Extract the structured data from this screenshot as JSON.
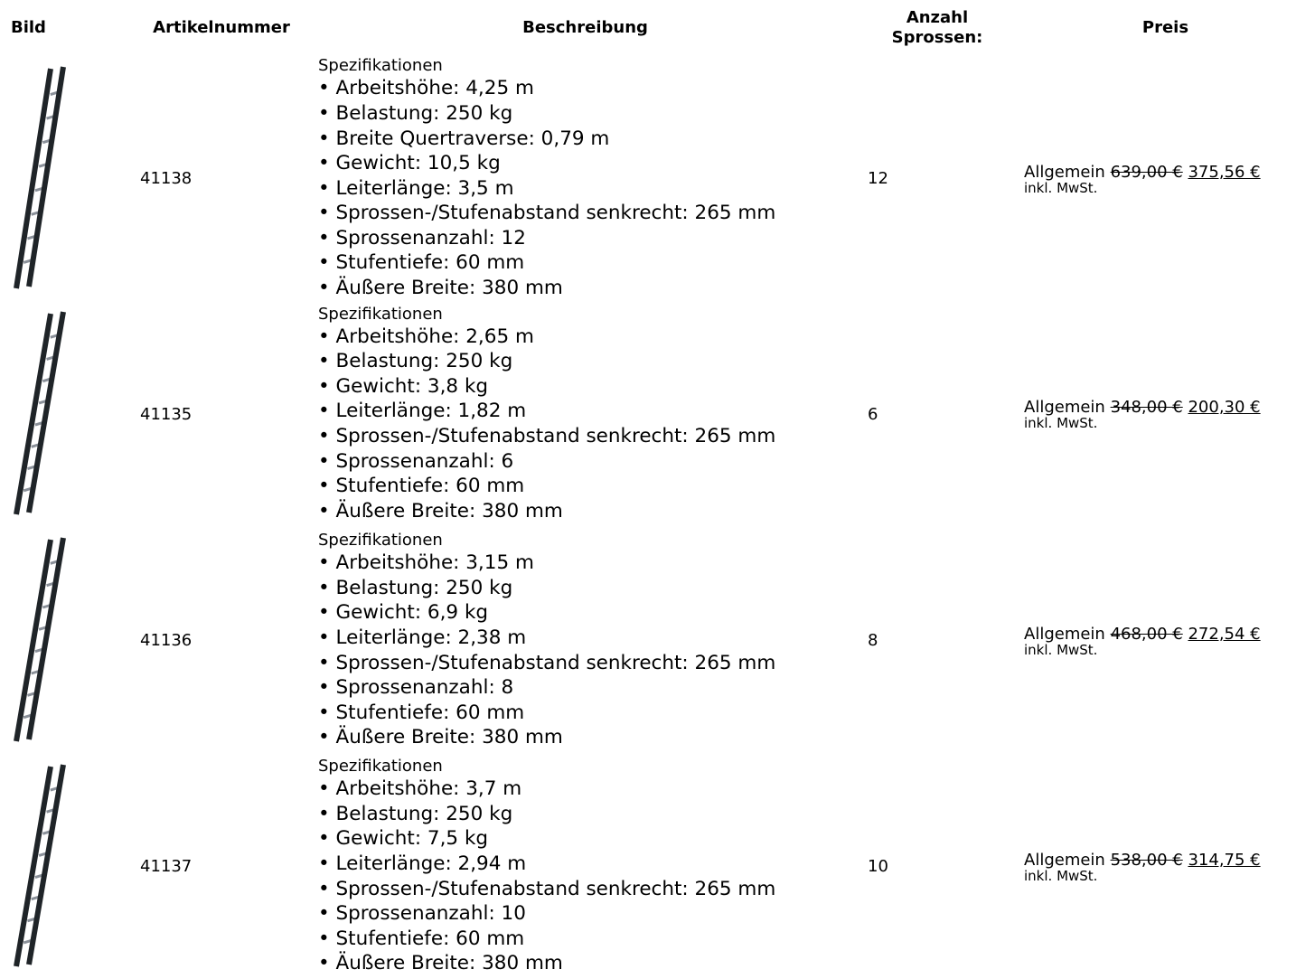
{
  "header": {
    "columns": [
      "Bild",
      "Artikelnummer",
      "Beschreibung",
      "Anzahl Sprossen:",
      "Preis"
    ]
  },
  "rows": [
    {
      "article": "41138",
      "spec_title": "Spezifikationen",
      "specs": [
        "• Arbeitshöhe: 4,25 m",
        "• Belastung: 250 kg",
        "• Breite Quertraverse: 0,79 m",
        "• Gewicht: 10,5 kg",
        "• Leiterlänge: 3,5 m",
        "• Sprossen-/Stufenabstand senkrecht: 265 mm",
        "• Sprossenanzahl: 12",
        "• Stufentiefe: 60 mm",
        "• Äußere Breite: 380 mm"
      ],
      "rungs": "12",
      "price_group": "Allgemein",
      "old_price": "639,00 €",
      "price": "375,56 €",
      "tax_note": "inkl. MwSt."
    },
    {
      "article": "41135",
      "spec_title": "Spezifikationen",
      "specs": [
        "• Arbeitshöhe: 2,65 m",
        "• Belastung: 250 kg",
        "• Gewicht: 3,8 kg",
        "• Leiterlänge: 1,82 m",
        "• Sprossen-/Stufenabstand senkrecht: 265 mm",
        "• Sprossenanzahl: 6",
        "• Stufentiefe: 60 mm",
        "• Äußere Breite: 380 mm"
      ],
      "rungs": "6",
      "price_group": "Allgemein",
      "old_price": "348,00 €",
      "price": "200,30 €",
      "tax_note": "inkl. MwSt."
    },
    {
      "article": "41136",
      "spec_title": "Spezifikationen",
      "specs": [
        "• Arbeitshöhe: 3,15 m",
        "• Belastung: 250 kg",
        "• Gewicht: 6,9 kg",
        "• Leiterlänge: 2,38 m",
        "• Sprossen-/Stufenabstand senkrecht: 265 mm",
        "• Sprossenanzahl: 8",
        "• Stufentiefe: 60 mm",
        "• Äußere Breite: 380 mm"
      ],
      "rungs": "8",
      "price_group": "Allgemein",
      "old_price": "468,00 €",
      "price": "272,54 €",
      "tax_note": "inkl. MwSt."
    },
    {
      "article": "41137",
      "spec_title": "Spezifikationen",
      "specs": [
        "• Arbeitshöhe: 3,7 m",
        "• Belastung: 250 kg",
        "• Gewicht: 7,5 kg",
        "• Leiterlänge: 2,94 m",
        "• Sprossen-/Stufenabstand senkrecht: 265 mm",
        "• Sprossenanzahl: 10",
        "• Stufentiefe: 60 mm",
        "• Äußere Breite: 380 mm"
      ],
      "rungs": "10",
      "price_group": "Allgemein",
      "old_price": "538,00 €",
      "price": "314,75 €",
      "tax_note": "inkl. MwSt."
    }
  ]
}
